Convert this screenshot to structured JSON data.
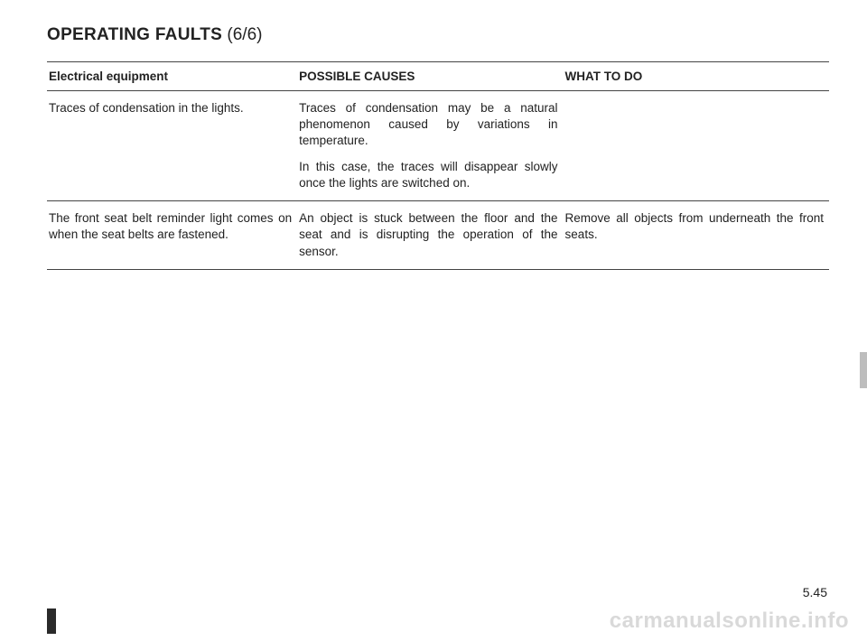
{
  "title": {
    "main": "OPERATING FAULTS",
    "section": "(6/6)"
  },
  "headers": {
    "col1": "Electrical equipment",
    "col2": "POSSIBLE CAUSES",
    "col3": "WHAT TO DO"
  },
  "rows": [
    {
      "fault": "Traces of condensation in the lights.",
      "cause1": "Traces of condensation may be a natural phenomenon caused by variations in temperature.",
      "cause2": "In this case, the traces will disappear slowly once the lights are switched on.",
      "action": ""
    },
    {
      "fault": "The front seat belt reminder light comes on when the seat belts are fastened.",
      "cause1": "An object is stuck between the floor and the seat and is disrupting the operation of the sensor.",
      "cause2": "",
      "action": "Remove all objects from underneath the front seats."
    }
  ],
  "pageNumber": "5.45",
  "watermark": "carmanualsonline.info"
}
